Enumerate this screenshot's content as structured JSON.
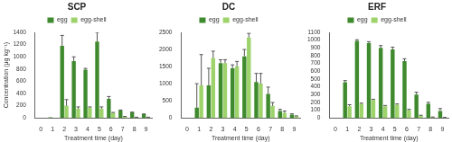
{
  "chart_data": [
    {
      "type": "bar",
      "title": "SCP",
      "x_label": "Treatment time (day)",
      "y_label": "Concentration (μg kg⁻¹)",
      "categories": [
        "0",
        "1",
        "2",
        "3",
        "4",
        "5",
        "6",
        "7",
        "8",
        "9"
      ],
      "series": [
        {
          "name": "egg",
          "color": "#3f8a2e",
          "values": [
            0,
            10,
            1180,
            930,
            790,
            1250,
            310,
            120,
            90,
            60
          ],
          "errors": [
            0,
            0,
            170,
            70,
            20,
            150,
            40,
            10,
            5,
            5
          ]
        },
        {
          "name": "egg-shell",
          "color": "#9ed36b",
          "values": [
            0,
            0,
            200,
            150,
            170,
            150,
            80,
            20,
            10,
            10
          ],
          "errors": [
            0,
            0,
            100,
            30,
            10,
            30,
            10,
            5,
            2,
            2
          ]
        }
      ],
      "ylim": [
        0,
        1400
      ],
      "yticks": [
        0,
        200,
        400,
        600,
        800,
        1000,
        1200,
        1400
      ],
      "grid": false,
      "legend": "top"
    },
    {
      "type": "bar",
      "title": "DC",
      "x_label": "Treatment time (day)",
      "categories": [
        "0",
        "1",
        "2",
        "3",
        "4",
        "5",
        "6",
        "7",
        "8",
        "9"
      ],
      "series": [
        {
          "name": "egg",
          "color": "#3f8a2e",
          "values": [
            0,
            300,
            950,
            1600,
            1450,
            1800,
            1050,
            700,
            200,
            100
          ],
          "errors": [
            0,
            700,
            500,
            100,
            100,
            200,
            250,
            200,
            50,
            20
          ]
        },
        {
          "name": "egg-shell",
          "color": "#9ed36b",
          "values": [
            0,
            950,
            1750,
            1600,
            1500,
            2350,
            1000,
            350,
            150,
            50
          ],
          "errors": [
            0,
            900,
            200,
            100,
            150,
            120,
            300,
            100,
            50,
            10
          ]
        }
      ],
      "ylim": [
        0,
        2500
      ],
      "yticks": [
        0,
        500,
        1000,
        1500,
        2000,
        2500
      ],
      "grid": false,
      "legend": "top"
    },
    {
      "type": "bar",
      "title": "ERF",
      "x_label": "Treatment time (day)",
      "categories": [
        "0",
        "1",
        "2",
        "3",
        "4",
        "5",
        "6",
        "7",
        "8",
        "9"
      ],
      "series": [
        {
          "name": "egg",
          "color": "#3f8a2e",
          "values": [
            0,
            460,
            990,
            960,
            900,
            880,
            730,
            300,
            180,
            90
          ],
          "errors": [
            0,
            20,
            15,
            20,
            30,
            30,
            30,
            30,
            20,
            30
          ]
        },
        {
          "name": "egg-shell",
          "color": "#9ed36b",
          "values": [
            0,
            150,
            180,
            230,
            150,
            170,
            100,
            30,
            10,
            5
          ],
          "errors": [
            0,
            20,
            10,
            10,
            10,
            10,
            10,
            5,
            2,
            2
          ]
        }
      ],
      "ylim": [
        0,
        1100
      ],
      "yticks": [
        0,
        100,
        200,
        300,
        400,
        500,
        600,
        700,
        800,
        900,
        1000,
        1100
      ],
      "grid": false,
      "legend": "top"
    }
  ]
}
